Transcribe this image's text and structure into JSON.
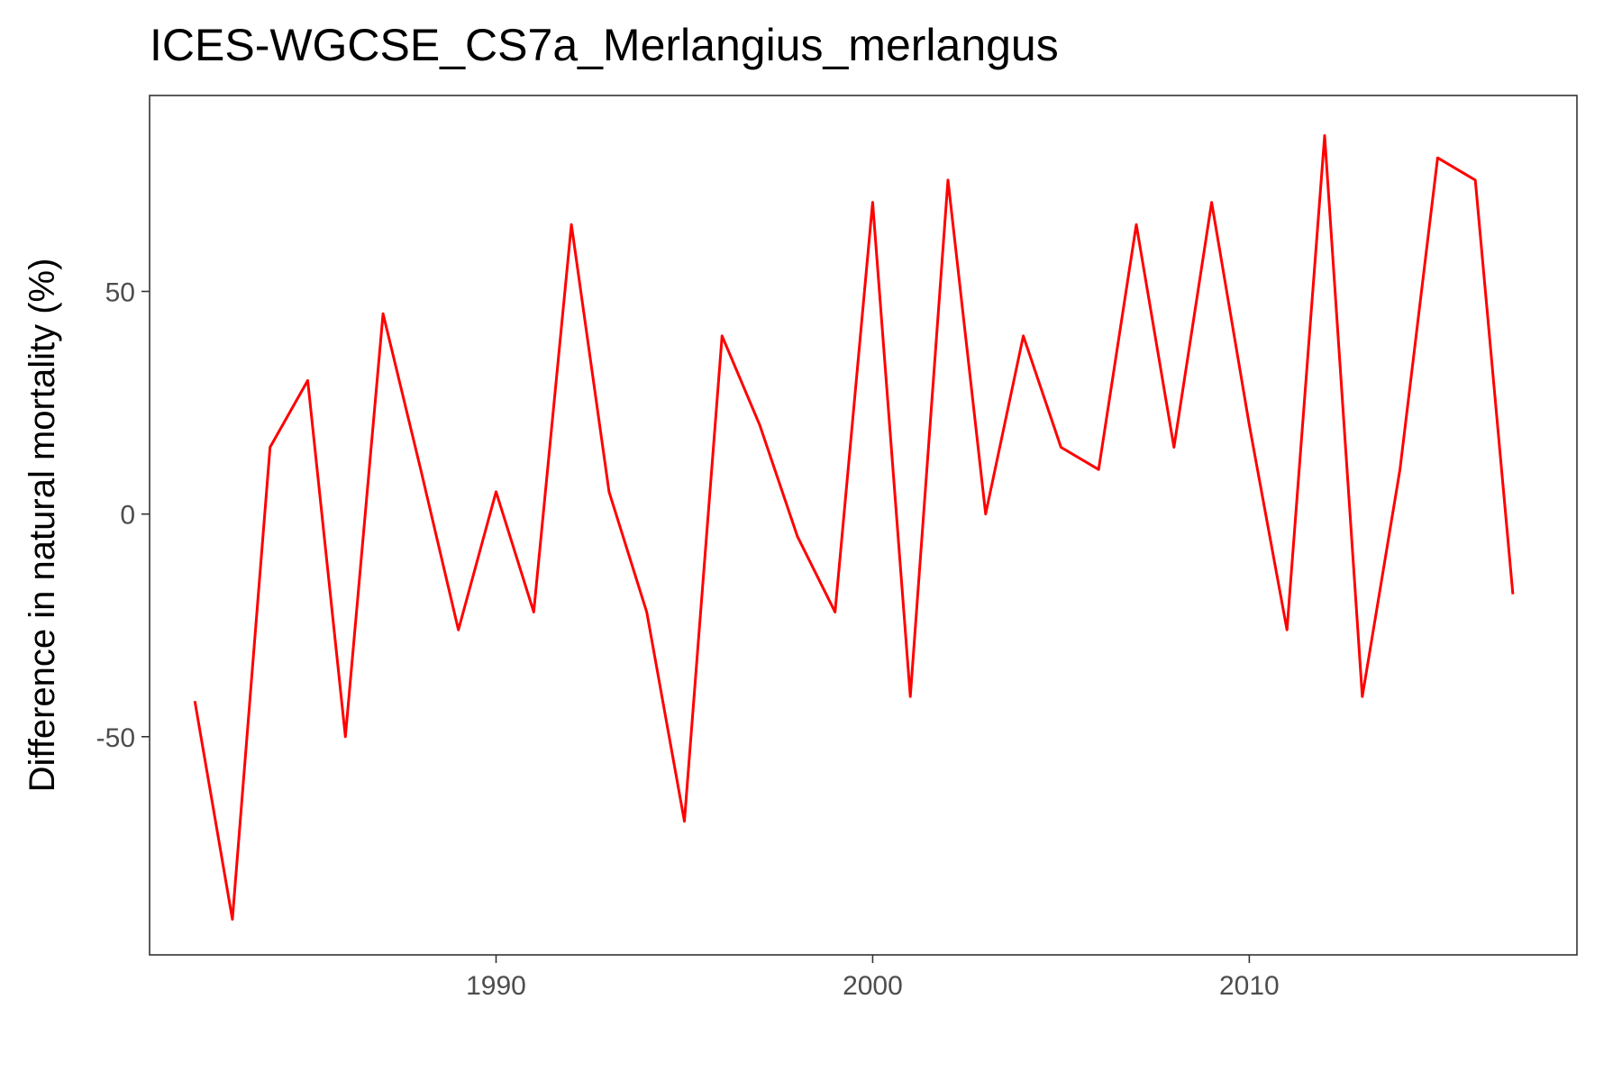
{
  "chart_data": {
    "type": "line",
    "title": "ICES-WGCSE_CS7a_Merlangius_merlangus",
    "xlabel": "",
    "ylabel": "Difference in natural mortality (%)",
    "xlim": [
      1980.8,
      2018.7
    ],
    "ylim": [
      -99,
      94
    ],
    "x_ticks": [
      1990,
      2000,
      2010
    ],
    "y_ticks": [
      -50,
      0,
      50
    ],
    "grid": false,
    "legend": "none",
    "line_color": "#ff0000",
    "series": [
      {
        "x": [
          1982,
          1983,
          1984,
          1985,
          1986,
          1987,
          1988,
          1989,
          1990,
          1991,
          1992,
          1993,
          1994,
          1995,
          1996,
          1997,
          1998,
          1999,
          2000,
          2001,
          2002,
          2003,
          2004,
          2005,
          2006,
          2007,
          2008,
          2009,
          2010,
          2011,
          2012,
          2013,
          2014,
          2015,
          2016,
          2017
        ],
        "values": [
          -42,
          -91,
          15,
          30,
          -50,
          45,
          10,
          -26,
          5,
          -22,
          65,
          5,
          -22,
          -69,
          40,
          20,
          -5,
          -22,
          70,
          -41,
          75,
          0,
          40,
          15,
          10,
          65,
          15,
          70,
          20,
          -26,
          85,
          -41,
          10,
          80,
          75,
          -18
        ]
      }
    ]
  }
}
